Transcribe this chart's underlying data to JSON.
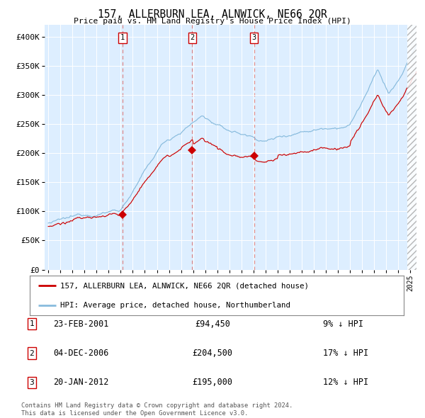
{
  "title": "157, ALLERBURN LEA, ALNWICK, NE66 2QR",
  "subtitle": "Price paid vs. HM Land Registry's House Price Index (HPI)",
  "legend_line1": "157, ALLERBURN LEA, ALNWICK, NE66 2QR (detached house)",
  "legend_line2": "HPI: Average price, detached house, Northumberland",
  "footer1": "Contains HM Land Registry data © Crown copyright and database right 2024.",
  "footer2": "This data is licensed under the Open Government Licence v3.0.",
  "transactions": [
    {
      "num": 1,
      "date": "23-FEB-2001",
      "price": 94450,
      "pct": "9%",
      "dir": "↓"
    },
    {
      "num": 2,
      "date": "04-DEC-2006",
      "price": 204500,
      "pct": "17%",
      "dir": "↓"
    },
    {
      "num": 3,
      "date": "20-JAN-2012",
      "price": 195000,
      "pct": "12%",
      "dir": "↓"
    }
  ],
  "transaction_dates_decimal": [
    2001.14,
    2006.92,
    2012.05
  ],
  "transaction_prices": [
    94450,
    204500,
    195000
  ],
  "hpi_color": "#88bbdd",
  "price_color": "#cc0000",
  "vline_color": "#dd8888",
  "plot_bg": "#ddeeff",
  "ylim": [
    0,
    420000
  ],
  "xlim_start": 1994.7,
  "xlim_end": 2025.5,
  "ylabel_ticks": [
    0,
    50000,
    100000,
    150000,
    200000,
    250000,
    300000,
    350000,
    400000
  ],
  "ytick_labels": [
    "£0",
    "£50K",
    "£100K",
    "£150K",
    "£200K",
    "£250K",
    "£300K",
    "£350K",
    "£400K"
  ],
  "xtick_years": [
    1995,
    1996,
    1997,
    1998,
    1999,
    2000,
    2001,
    2002,
    2003,
    2004,
    2005,
    2006,
    2007,
    2008,
    2009,
    2010,
    2011,
    2012,
    2013,
    2014,
    2015,
    2016,
    2017,
    2018,
    2019,
    2020,
    2021,
    2022,
    2023,
    2024,
    2025
  ]
}
